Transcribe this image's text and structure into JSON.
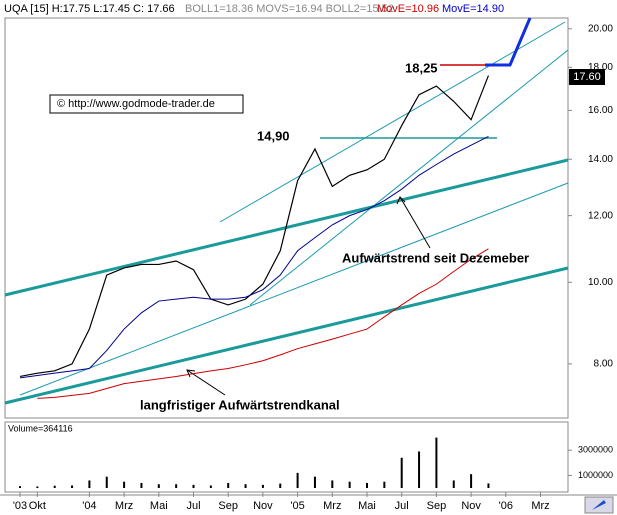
{
  "chart_data": {
    "type": "line",
    "header": {
      "symbol": "UQA [15] H:17.75 L:17.45 C: 17.66",
      "boll": "BOLL1=18.36 MOVS=16.94 BOLL2=15.52",
      "move_red": "MovE=10.96",
      "move_blue": "MovE=14.90"
    },
    "annotations": {
      "high": "18,25",
      "level": "14,90",
      "copyright": "© http://www.godmode-trader.de",
      "trend": "Aufwärtstrend seit Dezemeber",
      "channel": "langfristiger Aufwärtstrendkanal",
      "last_price": "17.60"
    },
    "categories": [
      "'03",
      "Okt",
      null,
      null,
      "'04",
      null,
      "Mrz",
      null,
      "Mai",
      null,
      "Jul",
      null,
      "Sep",
      null,
      "Nov",
      null,
      "'05",
      null,
      "Mrz",
      null,
      "Mai",
      null,
      "Jul",
      null,
      "Sep",
      null,
      "Nov",
      null,
      "'06",
      null,
      "Mrz"
    ],
    "series": [
      {
        "color": "#000000",
        "width": 1.2,
        "values": [
          7.73,
          7.8,
          7.85,
          8.0,
          8.8,
          10.2,
          10.4,
          10.5,
          10.5,
          10.6,
          10.35,
          9.55,
          9.4,
          9.55,
          9.95,
          10.9,
          13.2,
          14.4,
          13.0,
          13.4,
          13.6,
          14.0,
          15.35,
          16.7,
          17.1,
          16.4,
          15.6,
          17.6,
          null,
          null,
          null
        ]
      },
      {
        "color": "#00008b",
        "width": 1,
        "values": [
          7.7,
          7.75,
          7.8,
          7.85,
          7.9,
          8.3,
          8.8,
          9.2,
          9.5,
          9.55,
          9.6,
          9.55,
          9.55,
          9.6,
          9.8,
          10.2,
          10.9,
          11.3,
          11.7,
          12.0,
          12.2,
          12.5,
          12.9,
          13.4,
          13.8,
          14.2,
          14.55,
          14.9,
          null,
          null,
          null
        ]
      },
      {
        "color": "#cc0000",
        "width": 1,
        "values": [
          null,
          7.28,
          7.3,
          7.34,
          7.38,
          7.48,
          7.58,
          7.63,
          7.68,
          7.73,
          7.79,
          7.85,
          7.9,
          7.98,
          8.07,
          8.2,
          8.34,
          8.45,
          8.56,
          8.68,
          8.8,
          9.1,
          9.4,
          9.7,
          9.95,
          10.3,
          10.65,
          10.96,
          null,
          null,
          null
        ]
      }
    ],
    "log_scale": true,
    "ylim": [
      6.9,
      20.6
    ],
    "yticks": [
      {
        "value": 20,
        "label": "20.00"
      },
      {
        "value": 18,
        "label": "18.00"
      },
      {
        "value": 16,
        "label": "16.00"
      },
      {
        "value": 14,
        "label": "14.00"
      },
      {
        "value": 12,
        "label": "12.00"
      },
      {
        "value": 10,
        "label": "10.00"
      },
      {
        "value": 8,
        "label": "8.00"
      }
    ],
    "volume": {
      "title": "Volume=364116",
      "color": "#000000",
      "values": [
        150000,
        120000,
        180000,
        200000,
        600000,
        900000,
        500000,
        400000,
        300000,
        300000,
        250000,
        200000,
        400000,
        300000,
        250000,
        350000,
        1200000,
        900000,
        600000,
        500000,
        400000,
        500000,
        2400000,
        2900000,
        4000000,
        600000,
        1100000,
        364116,
        null,
        null,
        null
      ],
      "ylim": [
        0,
        5000000
      ],
      "yticks": [
        3000000,
        1000000
      ]
    }
  }
}
